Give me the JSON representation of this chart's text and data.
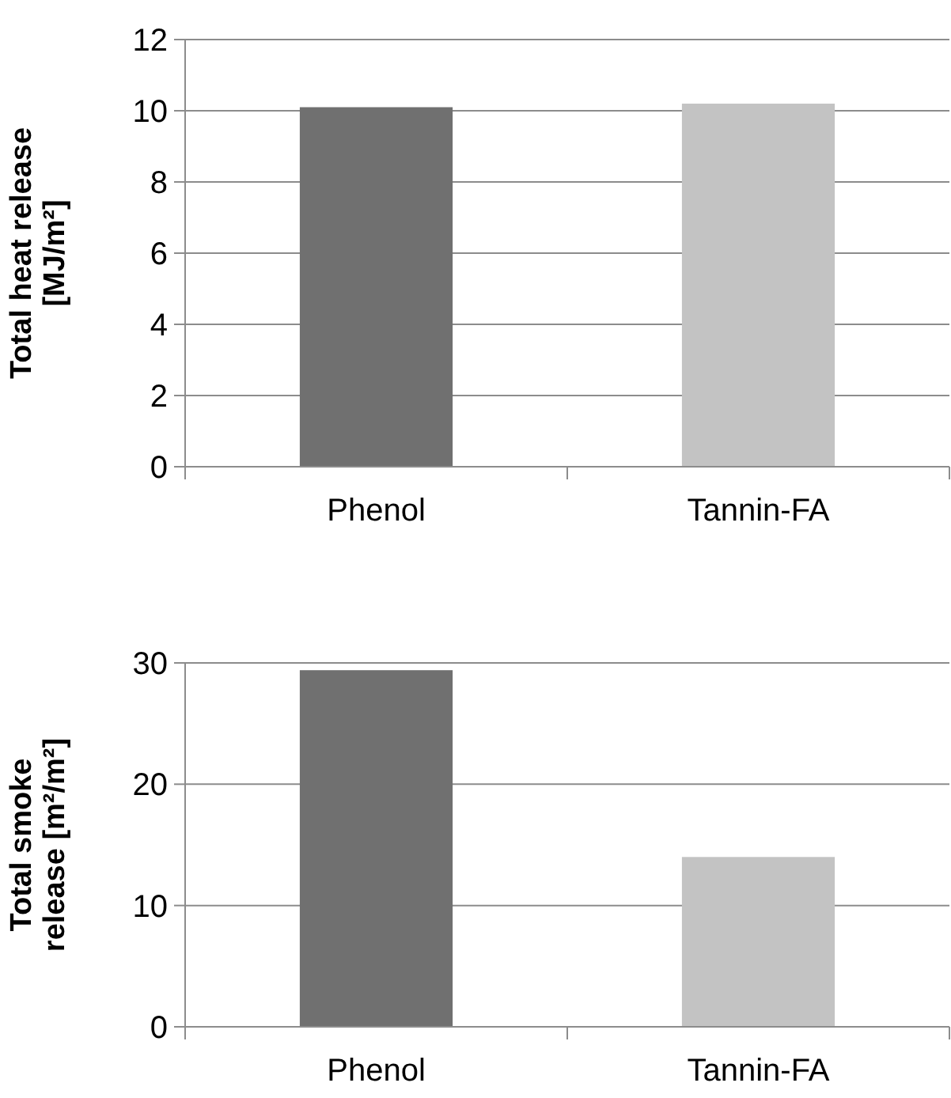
{
  "chart_data": [
    {
      "type": "bar",
      "ylabel": "Total heat release [MJ/m²]",
      "categories": [
        "Phenol",
        "Tannin-FA"
      ],
      "values": [
        10.1,
        10.2
      ],
      "colors": [
        "#707070",
        "#c3c3c3"
      ],
      "ylim": [
        0,
        12
      ],
      "yticks": [
        0,
        2,
        4,
        6,
        8,
        10,
        12
      ],
      "grid": "y"
    },
    {
      "type": "bar",
      "ylabel": "Total smoke release [m²/m²]",
      "categories": [
        "Phenol",
        "Tannin-FA"
      ],
      "values": [
        29.4,
        14.0
      ],
      "colors": [
        "#707070",
        "#c3c3c3"
      ],
      "ylim": [
        0,
        30
      ],
      "yticks": [
        0,
        10,
        20,
        30
      ],
      "grid": "y"
    }
  ]
}
